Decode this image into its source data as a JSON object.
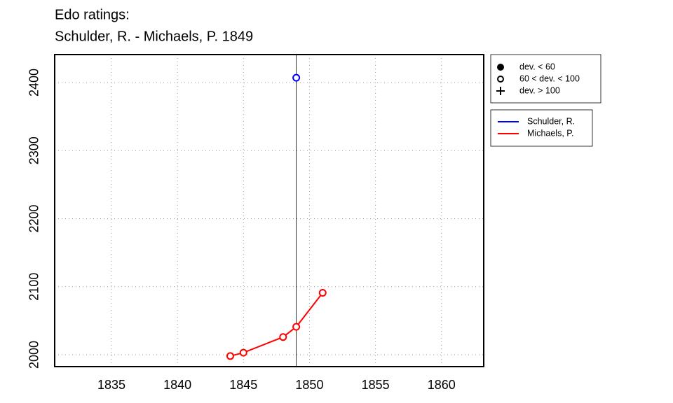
{
  "chart_data": {
    "type": "line",
    "title": "Edo ratings:",
    "subtitle": "Schulder, R. - Michaels, P. 1849",
    "series": [
      {
        "name": "Schulder, R.",
        "color": "#0000ff",
        "x": [
          1849
        ],
        "values": [
          2407
        ],
        "marker": "open"
      },
      {
        "name": "Michaels, P.",
        "color": "#ff0000",
        "x": [
          1844,
          1845,
          1848,
          1849,
          1851
        ],
        "values": [
          1998,
          2003,
          2026,
          2041,
          2091
        ],
        "marker": "open"
      }
    ],
    "marker_legend": [
      {
        "label": "dev. < 60",
        "symbol": "filled"
      },
      {
        "label": "60 < dev. < 100",
        "symbol": "open"
      },
      {
        "label": "dev. > 100",
        "symbol": "plus"
      }
    ],
    "vline": 1849,
    "xlim": [
      1830.7,
      1863.2
    ],
    "ylim": [
      1982.5,
      2441.1
    ],
    "xticks": [
      1835,
      1840,
      1845,
      1850,
      1855,
      1860
    ],
    "yticks": [
      2000,
      2100,
      2200,
      2300,
      2400
    ],
    "grid": true
  }
}
